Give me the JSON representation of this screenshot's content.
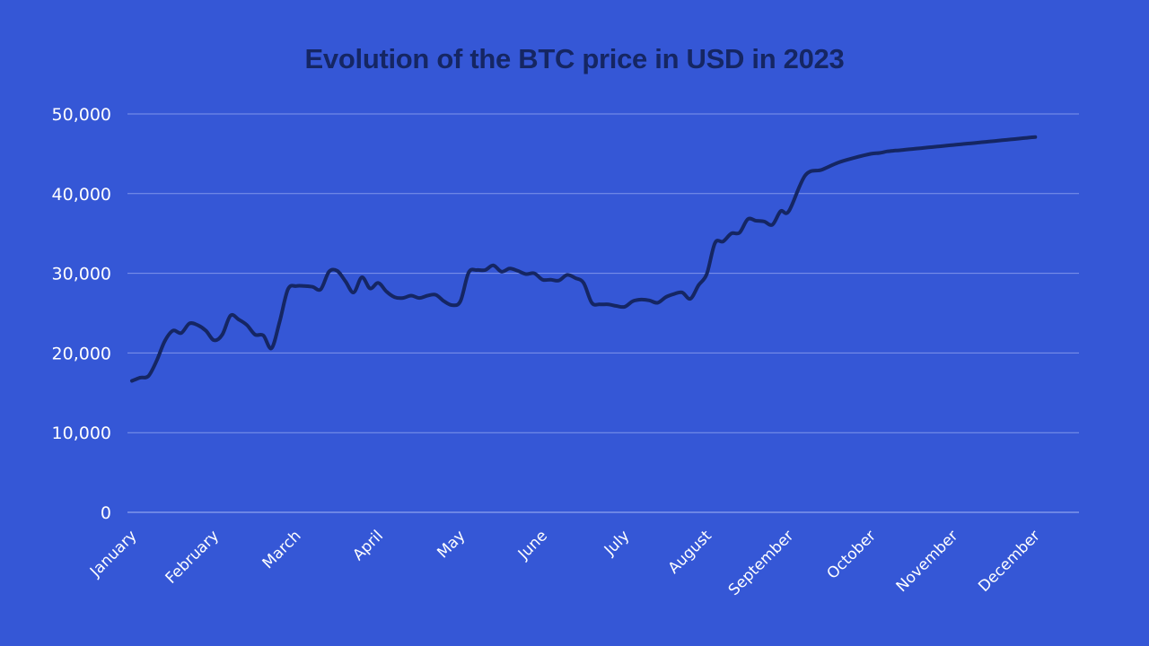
{
  "colors": {
    "background": "#3557d6",
    "line": "#152663",
    "grid": "#7f95ea",
    "text": "#ffffff",
    "title": "#152663"
  },
  "chart_data": {
    "type": "line",
    "title": "Evolution of the BTC price in USD in 2023",
    "xlabel": "",
    "ylabel": "",
    "ylim": [
      0,
      50000
    ],
    "y_ticks": [
      0,
      10000,
      20000,
      30000,
      40000,
      50000
    ],
    "y_tick_labels": [
      "0",
      "10,000",
      "20,000",
      "30,000",
      "40,000",
      "50,000"
    ],
    "x_tick_labels": [
      "January",
      "February",
      "March",
      "April",
      "May",
      "June",
      "July",
      "August",
      "September",
      "October",
      "November",
      "December"
    ],
    "grid": true,
    "legend": "none",
    "series": [
      {
        "x": [
          0,
          0.1,
          0.2,
          0.3,
          0.4,
          0.5,
          0.6,
          0.7,
          0.8,
          0.9,
          1.0,
          1.1,
          1.2,
          1.3,
          1.4,
          1.5,
          1.6,
          1.7,
          1.8,
          1.9,
          2.0,
          2.1,
          2.2,
          2.3,
          2.4,
          2.5,
          2.6,
          2.7,
          2.8,
          2.9,
          3.0,
          3.1,
          3.2,
          3.3,
          3.4,
          3.5,
          3.6,
          3.7,
          3.8,
          3.9,
          4.0,
          4.1,
          4.2,
          4.3,
          4.4,
          4.5,
          4.6,
          4.7,
          4.8,
          4.9,
          5.0,
          5.1,
          5.2,
          5.3,
          5.4,
          5.5,
          5.6,
          5.7,
          5.8,
          5.9,
          6.0,
          6.1,
          6.2,
          6.3,
          6.4,
          6.5,
          6.6,
          6.7,
          6.8,
          6.9,
          7.0,
          7.1,
          7.2,
          7.3,
          7.4,
          7.5,
          7.6,
          7.7,
          7.8,
          7.9,
          8.0,
          8.2,
          8.4,
          8.6,
          8.8,
          9.0,
          9.1,
          9.2,
          9.3,
          9.4,
          9.5,
          9.6,
          9.7,
          9.8,
          9.9,
          10.0,
          10.1,
          10.2,
          10.3,
          10.4,
          10.5,
          10.6,
          10.7,
          10.8,
          10.9,
          11.0
        ],
        "values": [
          16500,
          16900,
          17100,
          19000,
          21500,
          22800,
          22500,
          23700,
          23500,
          22800,
          21600,
          22300,
          24700,
          24200,
          23500,
          22300,
          22200,
          20600,
          24000,
          28000,
          28400,
          28400,
          28300,
          28000,
          30200,
          30300,
          29000,
          27600,
          29500,
          28100,
          28800,
          27700,
          27000,
          26900,
          27200,
          26900,
          27200,
          27300,
          26500,
          26000,
          26500,
          30100,
          30400,
          30400,
          31000,
          30200,
          30600,
          30300,
          29900,
          30000,
          29200,
          29200,
          29100,
          29800,
          29400,
          28800,
          26300,
          26100,
          26100,
          25900,
          25800,
          26500,
          26700,
          26600,
          26300,
          27000,
          27400,
          27600,
          26800,
          28500,
          29900,
          33800,
          34000,
          35000,
          35100,
          36800,
          36600,
          36500,
          36100,
          37800,
          37800,
          42300,
          43000,
          43900,
          44500,
          45000,
          45100,
          45300,
          45400,
          45500,
          45600,
          45700,
          45800,
          45900,
          46000,
          46100,
          46200,
          46300,
          46400,
          46500,
          46600,
          46700,
          46800,
          46900,
          47000,
          47100
        ]
      }
    ]
  }
}
